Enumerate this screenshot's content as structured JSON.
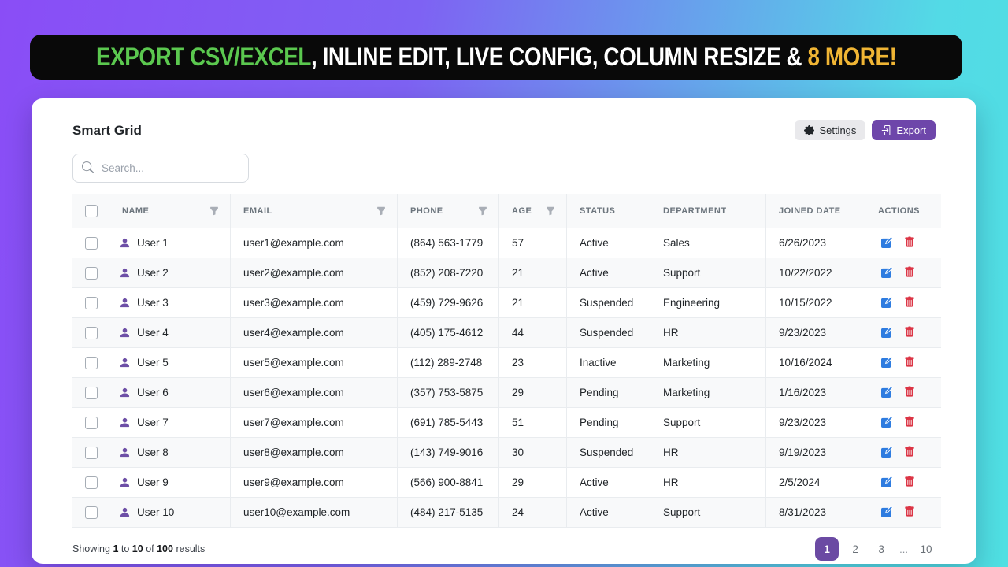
{
  "banner": {
    "segments": [
      {
        "text": "EXPORT CSV/EXCEL",
        "color": "#5bc84f"
      },
      {
        "text": ", INLINE EDIT, LIVE CONFIG, COLUMN RESIZE & ",
        "color": "#ffffff"
      },
      {
        "text": "8 MORE!",
        "color": "#f0b534"
      }
    ]
  },
  "toolbar": {
    "title": "Smart Grid",
    "settings_label": "Settings",
    "export_label": "Export"
  },
  "search": {
    "placeholder": "Search..."
  },
  "table": {
    "columns": [
      {
        "key": "select",
        "label": "",
        "filter": false
      },
      {
        "key": "name",
        "label": "NAME",
        "filter": true
      },
      {
        "key": "email",
        "label": "EMAIL",
        "filter": true
      },
      {
        "key": "phone",
        "label": "PHONE",
        "filter": true
      },
      {
        "key": "age",
        "label": "AGE",
        "filter": true
      },
      {
        "key": "status",
        "label": "STATUS",
        "filter": false
      },
      {
        "key": "department",
        "label": "DEPARTMENT",
        "filter": false
      },
      {
        "key": "joined",
        "label": "JOINED DATE",
        "filter": false
      },
      {
        "key": "actions",
        "label": "ACTIONS",
        "filter": false
      }
    ],
    "rows": [
      {
        "name": "User 1",
        "email": "user1@example.com",
        "phone": "(864) 563-1779",
        "age": "57",
        "status": "Active",
        "department": "Sales",
        "joined": "6/26/2023"
      },
      {
        "name": "User 2",
        "email": "user2@example.com",
        "phone": "(852) 208-7220",
        "age": "21",
        "status": "Active",
        "department": "Support",
        "joined": "10/22/2022"
      },
      {
        "name": "User 3",
        "email": "user3@example.com",
        "phone": "(459) 729-9626",
        "age": "21",
        "status": "Suspended",
        "department": "Engineering",
        "joined": "10/15/2022"
      },
      {
        "name": "User 4",
        "email": "user4@example.com",
        "phone": "(405) 175-4612",
        "age": "44",
        "status": "Suspended",
        "department": "HR",
        "joined": "9/23/2023"
      },
      {
        "name": "User 5",
        "email": "user5@example.com",
        "phone": "(112) 289-2748",
        "age": "23",
        "status": "Inactive",
        "department": "Marketing",
        "joined": "10/16/2024"
      },
      {
        "name": "User 6",
        "email": "user6@example.com",
        "phone": "(357) 753-5875",
        "age": "29",
        "status": "Pending",
        "department": "Marketing",
        "joined": "1/16/2023"
      },
      {
        "name": "User 7",
        "email": "user7@example.com",
        "phone": "(691) 785-5443",
        "age": "51",
        "status": "Pending",
        "department": "Support",
        "joined": "9/23/2023"
      },
      {
        "name": "User 8",
        "email": "user8@example.com",
        "phone": "(143) 749-9016",
        "age": "30",
        "status": "Suspended",
        "department": "HR",
        "joined": "9/19/2023"
      },
      {
        "name": "User 9",
        "email": "user9@example.com",
        "phone": "(566) 900-8841",
        "age": "29",
        "status": "Active",
        "department": "HR",
        "joined": "2/5/2024"
      },
      {
        "name": "User 10",
        "email": "user10@example.com",
        "phone": "(484) 217-5135",
        "age": "24",
        "status": "Active",
        "department": "Support",
        "joined": "8/31/2023"
      }
    ]
  },
  "footer": {
    "showing": {
      "prefix": "Showing",
      "from": "1",
      "to_word": "to",
      "to": "10",
      "of_word": "of",
      "total": "100",
      "suffix": "results"
    },
    "pagination": {
      "pages": [
        "1",
        "2",
        "3",
        "...",
        "10"
      ],
      "active": "1"
    }
  },
  "colors": {
    "accent_purple": "#6e46aa",
    "pagination_active": "#6b4aa3",
    "banner_green": "#5bc84f",
    "banner_yellow": "#f0b534",
    "edit_blue": "#2e7ce0",
    "delete_red": "#dc3545",
    "user_icon_purple": "#6d4fa6",
    "background_gradient_start": "#8a4df6",
    "background_gradient_end": "#53dae6"
  }
}
